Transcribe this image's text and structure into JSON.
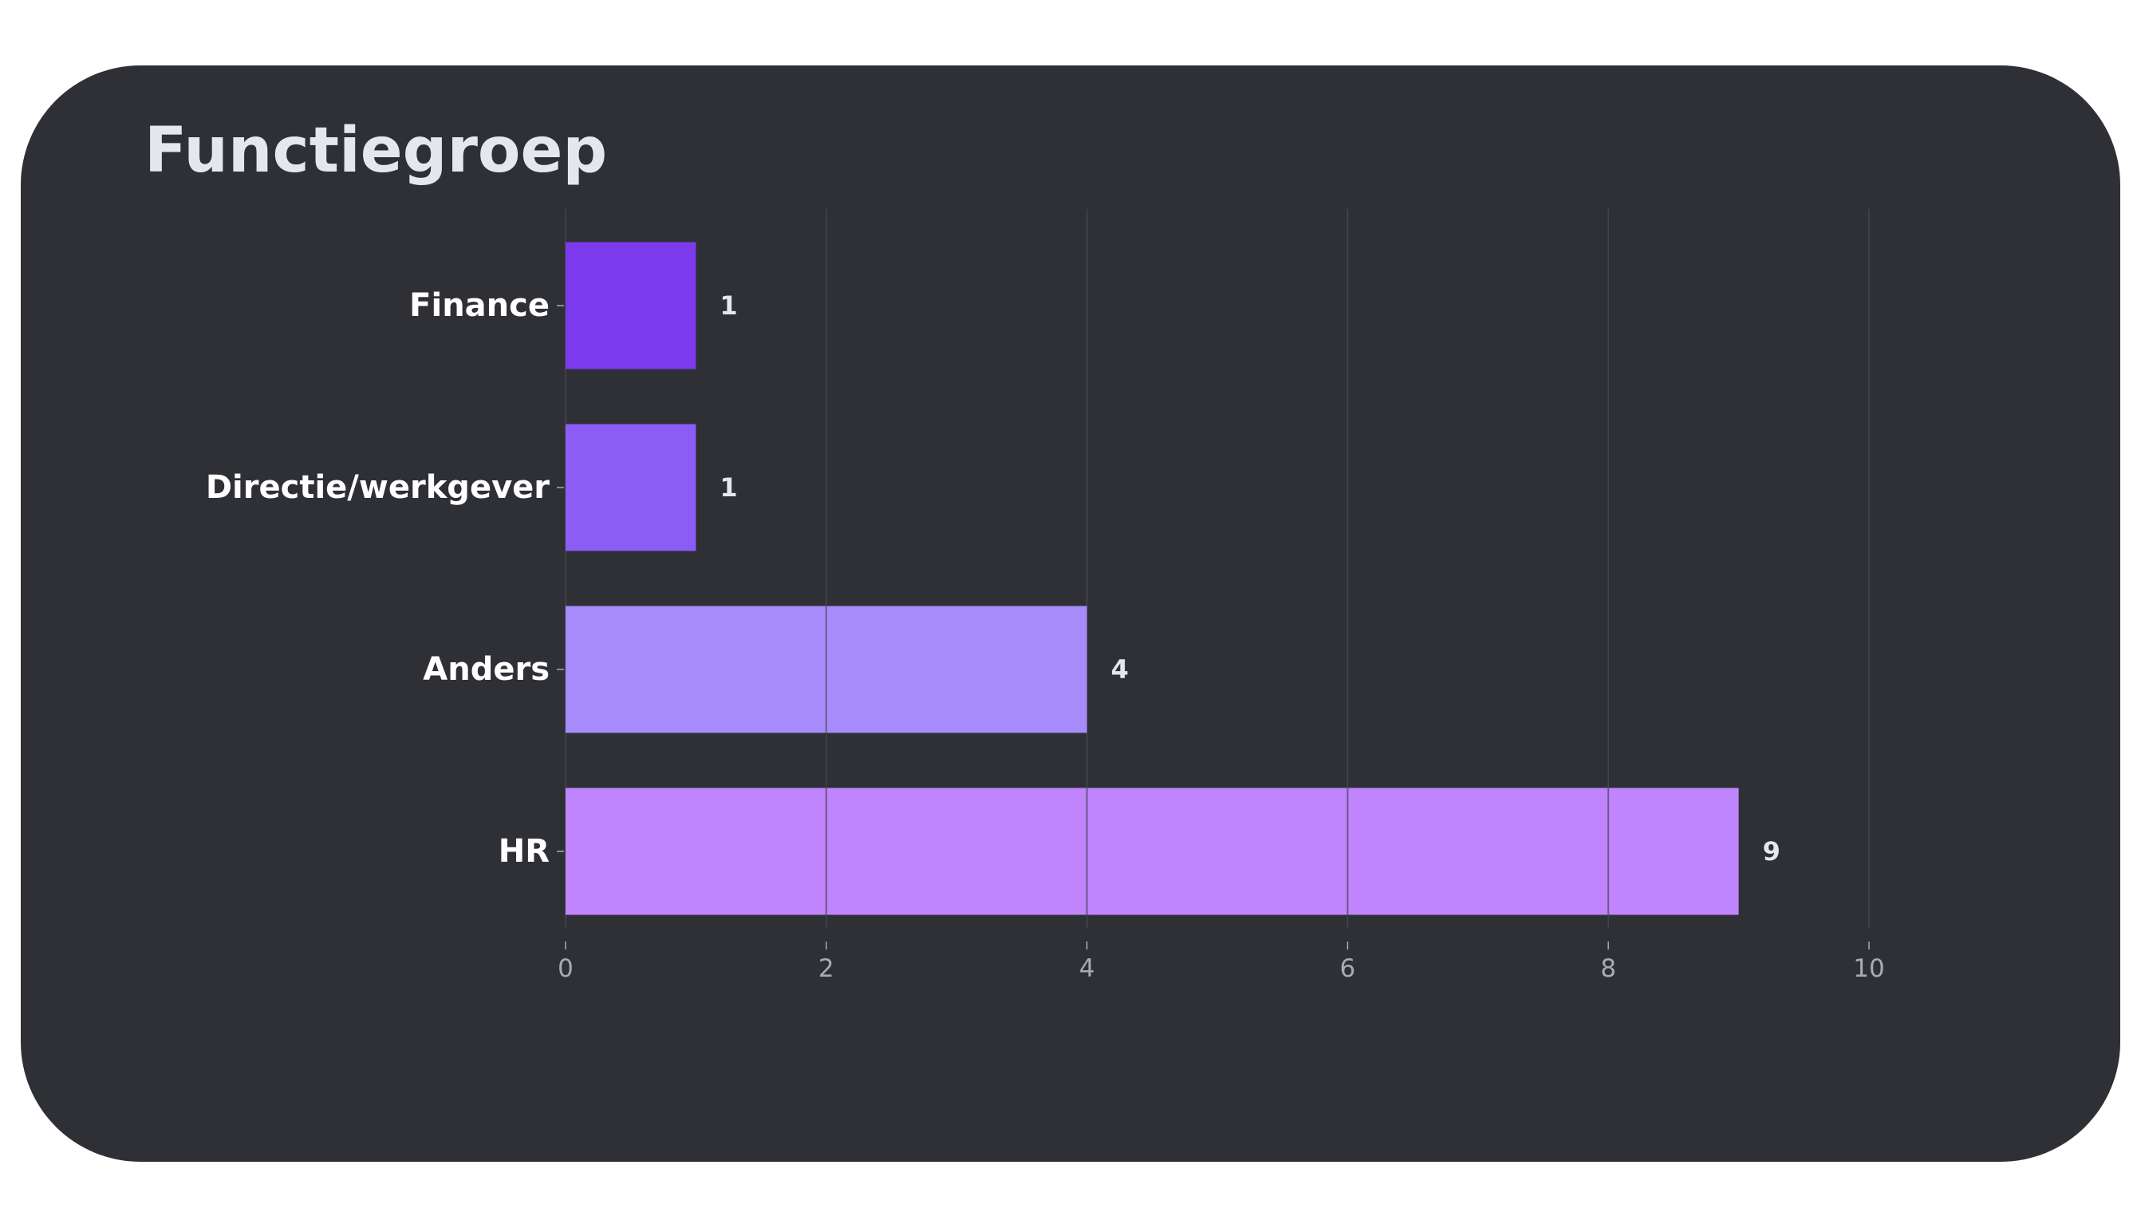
{
  "title": "Functiegroep",
  "colors": {
    "card_background": "#2e3036",
    "title_text": "#e6e7ec",
    "category_label": "#ffffff",
    "value_label": "#e6e7ec",
    "tick_label": "#a9abb3",
    "grid": "#44464d"
  },
  "chart_data": {
    "type": "bar",
    "orientation": "horizontal",
    "title": "Functiegroep",
    "categories": [
      "Finance",
      "Directie/werkgever",
      "Anders",
      "HR"
    ],
    "values": [
      1,
      1,
      4,
      9
    ],
    "bar_colors": [
      "#7c3aed",
      "#8b5cf6",
      "#a78bfa",
      "#c084fc"
    ],
    "data_labels": [
      "1",
      "1",
      "4",
      "9"
    ],
    "xlim": [
      0,
      10
    ],
    "xticks": [
      0,
      2,
      4,
      6,
      8,
      10
    ],
    "xtick_labels": [
      "0",
      "2",
      "4",
      "6",
      "8",
      "10"
    ],
    "xlabel": "",
    "ylabel": "",
    "grid": "vertical"
  }
}
